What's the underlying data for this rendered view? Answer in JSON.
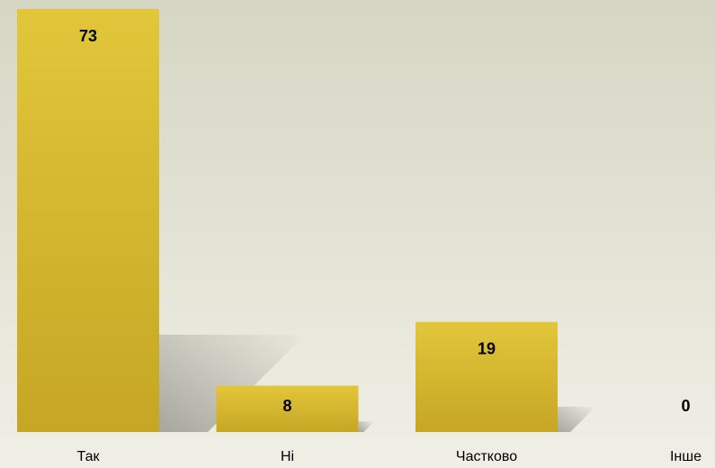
{
  "chart_data": {
    "type": "bar",
    "categories": [
      "Так",
      "Ні",
      "Частково",
      "Інше"
    ],
    "values": [
      73,
      8,
      19,
      0
    ],
    "color": "#d8bb30"
  }
}
